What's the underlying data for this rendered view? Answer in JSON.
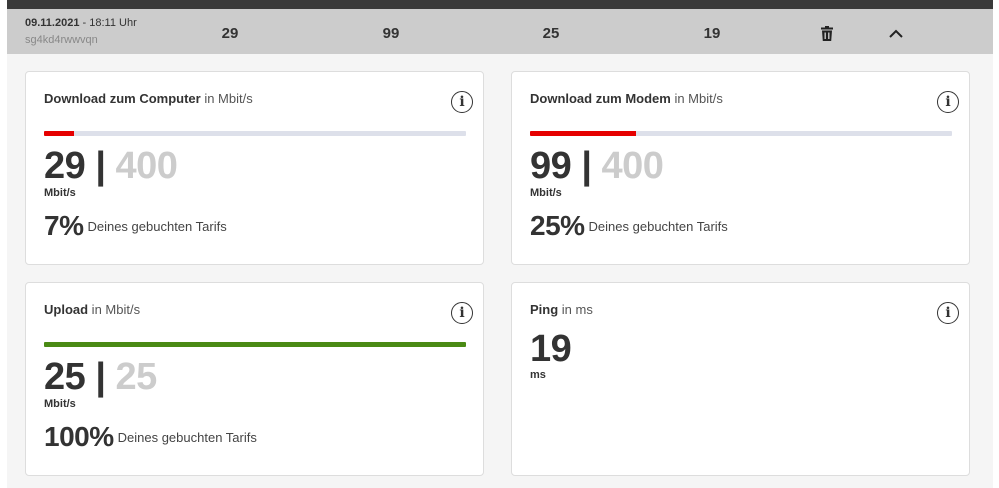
{
  "header": {
    "date": "09.11.2021",
    "time": "- 18:11 Uhr",
    "id": "sg4kd4rwwvqn",
    "values": [
      "29",
      "99",
      "25",
      "19"
    ],
    "delete_icon": "trash-icon",
    "collapse_icon": "chevron-up-icon"
  },
  "cards": {
    "download_computer": {
      "title": "Download zum Computer",
      "unit_suffix": " in Mbit/s",
      "current": "29",
      "separator": " | ",
      "max": "400",
      "unit": "Mbit/s",
      "percent": "7%",
      "percent_label": "Deines gebuchten Tarifs",
      "progress_fraction": 0.07,
      "bar_color": "#e60000"
    },
    "download_modem": {
      "title": "Download zum Modem",
      "unit_suffix": " in Mbit/s",
      "current": "99",
      "separator": " | ",
      "max": "400",
      "unit": "Mbit/s",
      "percent": "25%",
      "percent_label": "Deines gebuchten Tarifs",
      "progress_fraction": 0.25,
      "bar_color": "#e60000"
    },
    "upload": {
      "title": "Upload",
      "unit_suffix": " in Mbit/s",
      "current": "25",
      "separator": " | ",
      "max": "25",
      "unit": "Mbit/s",
      "percent": "100%",
      "percent_label": "Deines gebuchten Tarifs",
      "progress_fraction": 1.0,
      "bar_color": "#4a8a14"
    },
    "ping": {
      "title": "Ping",
      "unit_suffix": " in ms",
      "current": "19",
      "unit": "ms"
    }
  },
  "colors": {
    "track": "#dde0ea",
    "header_bg": "#cccccc",
    "max_value": "#cccccc"
  },
  "info_icon": "info-icon"
}
